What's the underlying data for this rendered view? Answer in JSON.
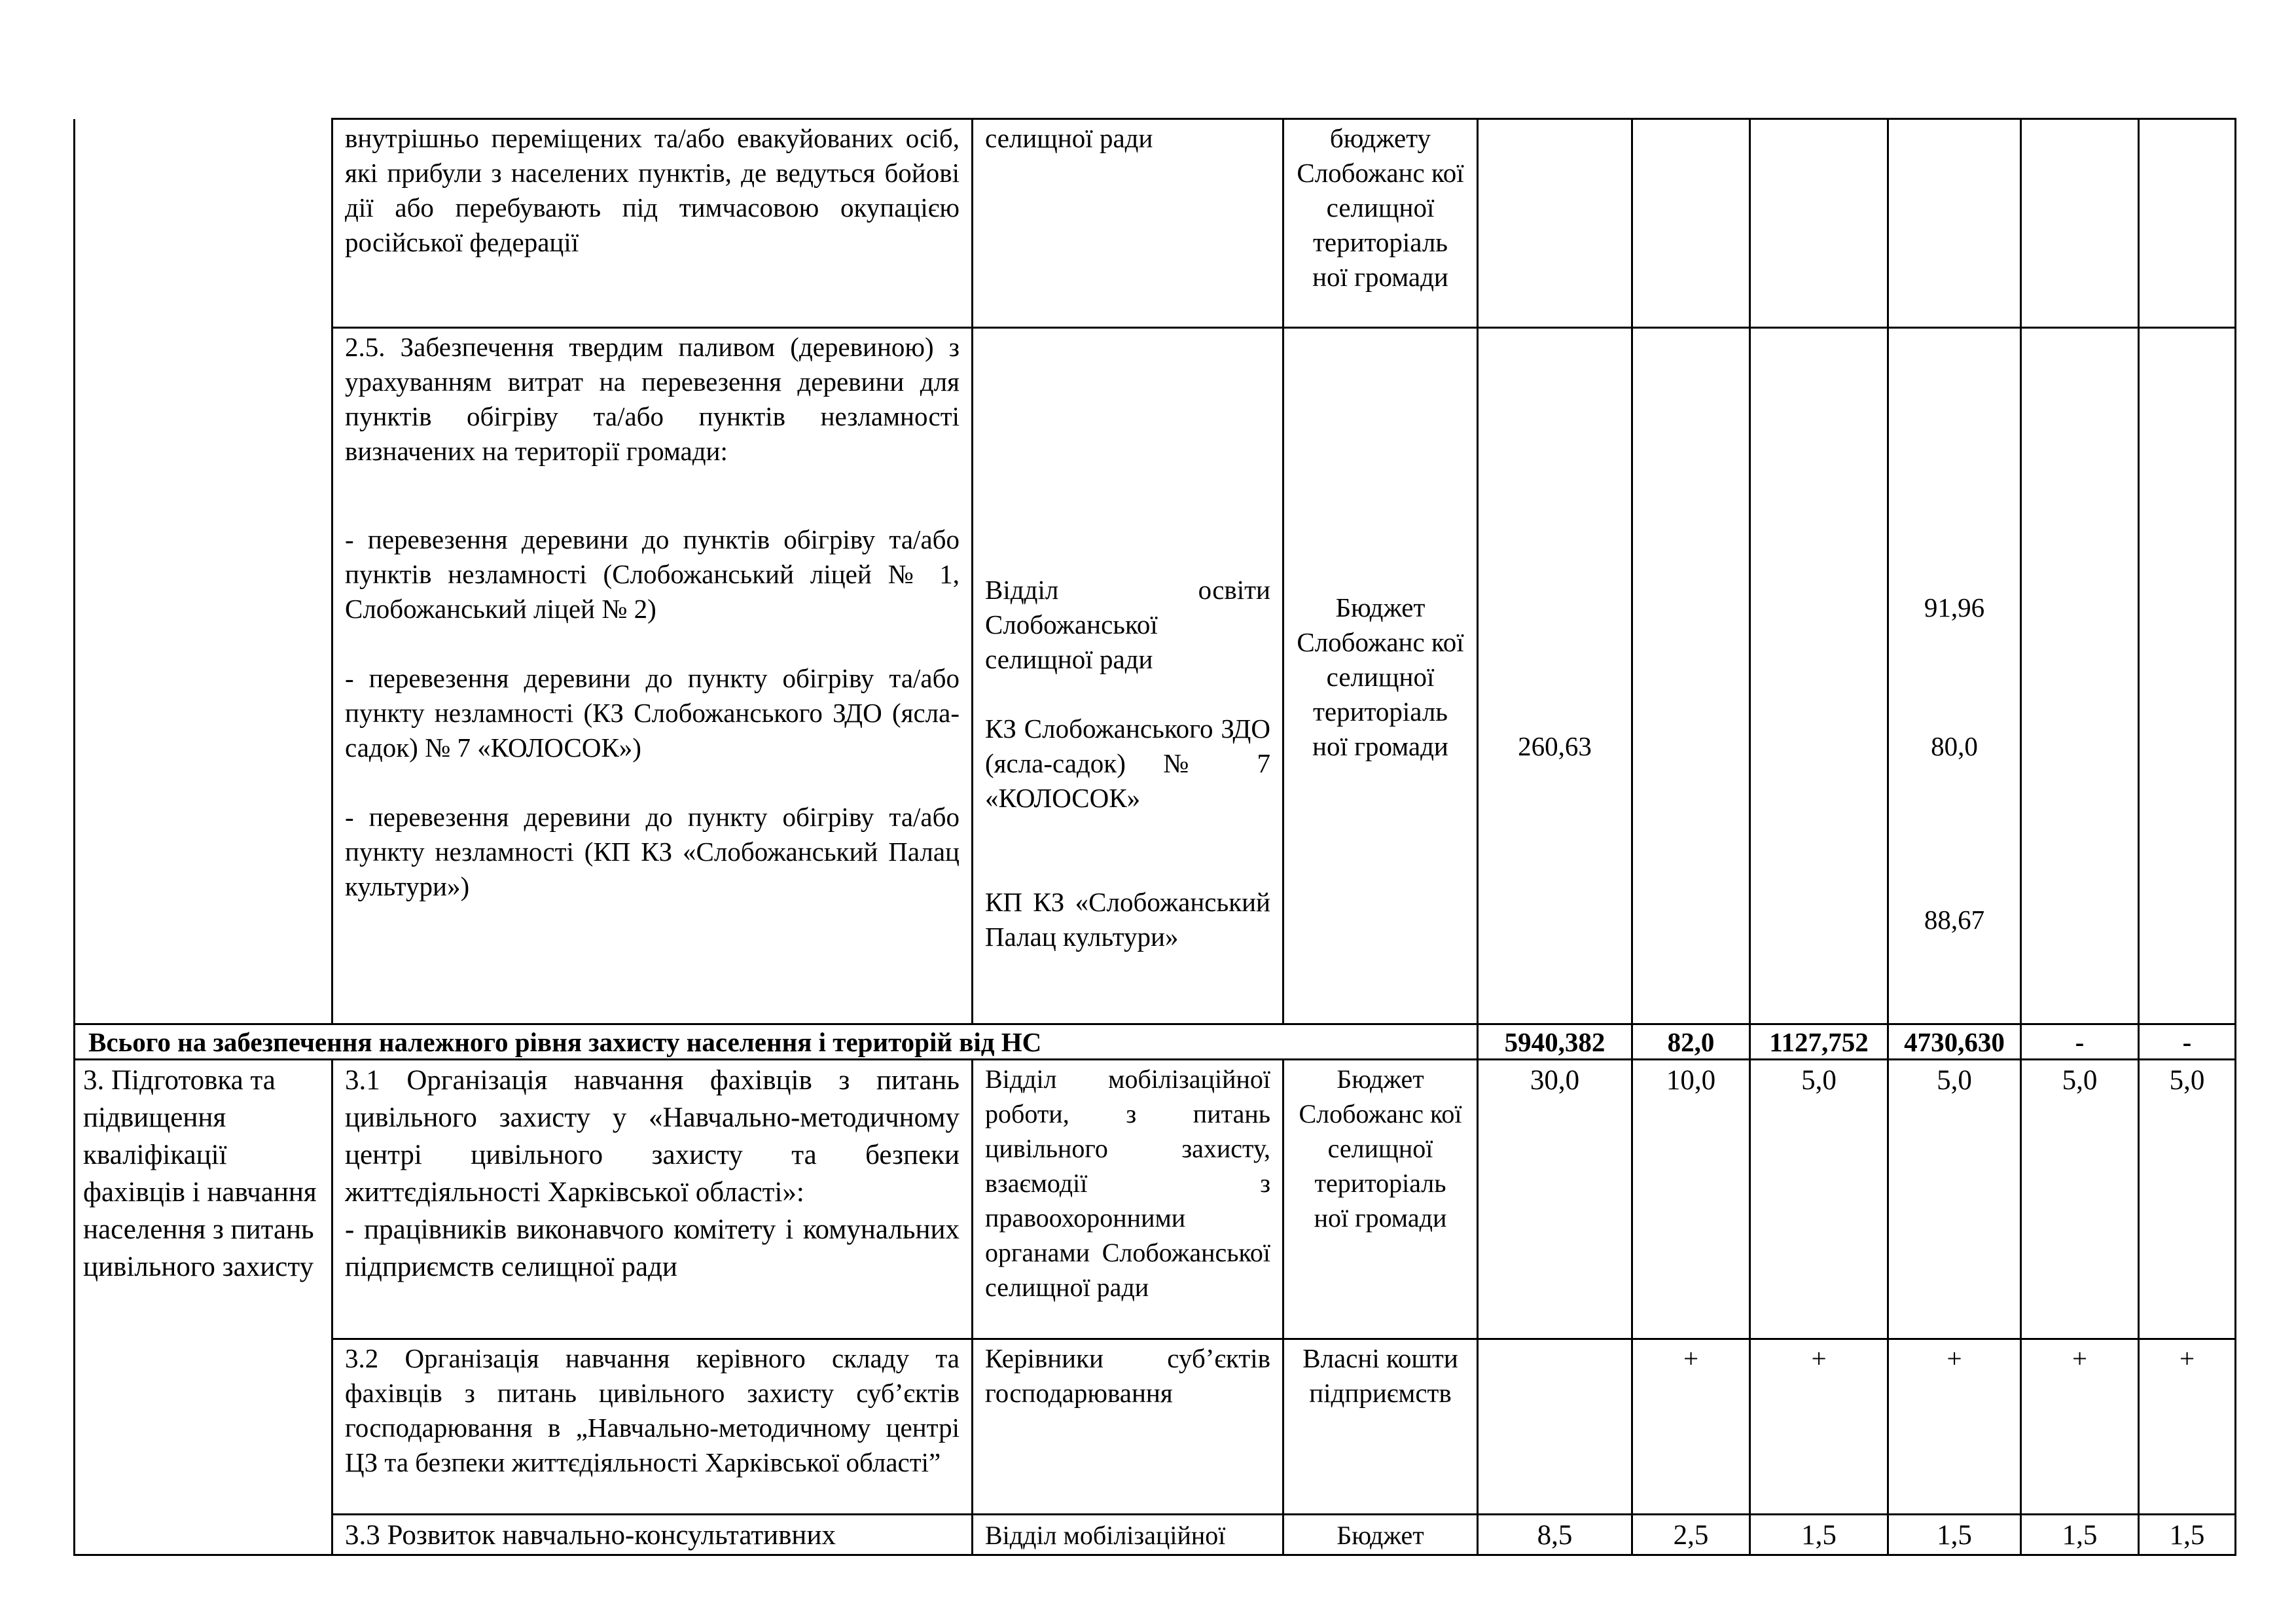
{
  "rows": {
    "r1": {
      "measure": "внутрішньо переміщених та/або евакуйованих осіб, які прибули з населених пунктів, де ведуться бойові дії або перебувають під тимчасовою окупацією російської федерації",
      "executor": "селищної ради",
      "source": "бюджету Слобожанс кої селищної територіаль ної громади"
    },
    "r2": {
      "heading": "2.5. Забезпечення твердим паливом (деревиною) з урахуванням витрат на перевезення деревини для пунктів обігріву та/або пунктів незламності визначених на території громади:",
      "items": [
        {
          "text": "- перевезення деревини до пунктів обігріву та/або пунктів незламності (Слобожанський ліцей № 1, Слобожанський ліцей № 2)",
          "executor": "Відділ освіти Слобожанської селищної ради",
          "amount": "91,96"
        },
        {
          "text": "- перевезення деревини до пункту обігріву та/або пункту незламності (КЗ Слобожанського ЗДО (ясла-садок) № 7 «КОЛОСОК»)",
          "executor": "КЗ Слобожанського ЗДО (ясла-садок) № 7 «КОЛОСОК»",
          "amount": "80,0"
        },
        {
          "text": "- перевезення деревини до пункту обігріву та/або пункту незламності (КП КЗ «Слобожанський Палац культури»)",
          "executor": "КП КЗ «Слобожанський Палац культури»",
          "amount": "88,67"
        }
      ],
      "source": "Бюджет Слобожанс кої селищної територіаль ної громади",
      "total": "260,63"
    },
    "total": {
      "label": "Всього на забезпечення належного рівня захисту населення і територій від НС",
      "values": [
        "5940,382",
        "82,0",
        "1127,752",
        "4730,630",
        "-",
        "-"
      ]
    },
    "section3": {
      "title": "3. Підготовка та підвищення кваліфікації фахівців і навчання населення з питань цивільного захисту",
      "r31": {
        "measure": "3.1 Організація навчання фахівців з питань цивільного захисту у «Навчально-методичному центрі цивільного захисту та безпеки життєдіяльності Харківської області»:",
        "measure2": "- працівників виконавчого комітету і комунальних підприємств селищної ради",
        "executor": "Відділ мобілізаційної роботи, з питань цивільного захисту, взаємодії з правоохоронними органами Слобожанської селищної ради",
        "source": "Бюджет Слобожанс кої селищної територіаль ної громади",
        "values": [
          "30,0",
          "10,0",
          "5,0",
          "5,0",
          "5,0",
          "5,0"
        ]
      },
      "r32": {
        "measure": "3.2 Організація навчання керівного складу та фахівців з питань цивільного захисту суб’єктів господарювання в „Навчально-методичному центрі ЦЗ та безпеки життєдіяльності Харківської області”",
        "executor": "Керівники суб’єктів господарювання",
        "source": "Власні кошти підприємств",
        "values": [
          "",
          "+",
          "+",
          "+",
          "+",
          "+"
        ]
      },
      "r33": {
        "measure": "3.3 Розвиток навчально-консультативних",
        "executor": "Відділ мобілізаційної",
        "source": "Бюджет",
        "values": [
          "8,5",
          "2,5",
          "1,5",
          "1,5",
          "1,5",
          "1,5"
        ]
      }
    }
  }
}
